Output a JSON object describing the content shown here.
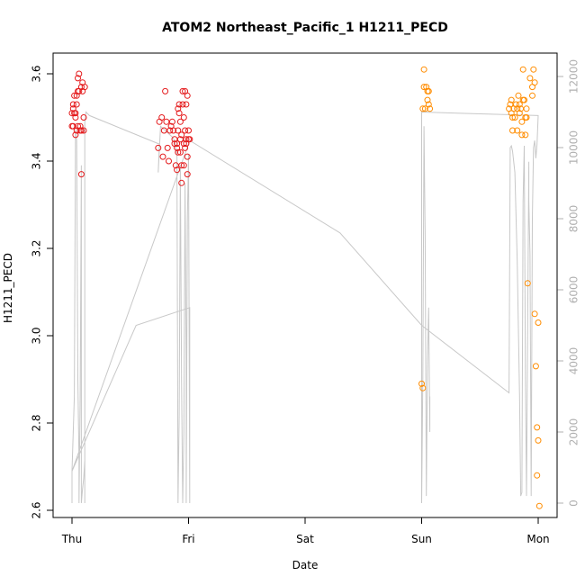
{
  "chart_data": {
    "type": "scatter",
    "title": "ATOM2 Northeast_Pacific_1 H1211_PECD",
    "xlabel": "Date",
    "ylabel": "H1211_PECD",
    "x_ticks": [
      "Thu",
      "Fri",
      "Sat",
      "Sun",
      "Mon"
    ],
    "xlim": [
      -0.02,
      4.2
    ],
    "ylim": [
      2.6,
      3.6
    ],
    "y_ticks": [
      2.6,
      2.8,
      3.0,
      3.2,
      3.4,
      3.6
    ],
    "y2_ticks": [
      0,
      2000,
      4000,
      6000,
      8000,
      10000,
      12000
    ],
    "y2lim": [
      0,
      12000
    ],
    "grid": false,
    "series": [
      {
        "color": "#e41a1c",
        "points": [
          [
            0.0,
            3.51
          ],
          [
            0.0,
            3.48
          ],
          [
            0.01,
            3.53
          ],
          [
            0.01,
            3.48
          ],
          [
            0.01,
            3.52
          ],
          [
            0.02,
            3.51
          ],
          [
            0.02,
            3.55
          ],
          [
            0.03,
            3.46
          ],
          [
            0.03,
            3.51
          ],
          [
            0.03,
            3.5
          ],
          [
            0.04,
            3.55
          ],
          [
            0.04,
            3.53
          ],
          [
            0.04,
            3.47
          ],
          [
            0.05,
            3.48
          ],
          [
            0.05,
            3.56
          ],
          [
            0.05,
            3.59
          ],
          [
            0.06,
            3.6
          ],
          [
            0.06,
            3.56
          ],
          [
            0.07,
            3.48
          ],
          [
            0.07,
            3.47
          ],
          [
            0.08,
            3.57
          ],
          [
            0.08,
            3.37
          ],
          [
            0.08,
            3.47
          ],
          [
            0.09,
            3.58
          ],
          [
            0.09,
            3.56
          ],
          [
            0.1,
            3.5
          ],
          [
            0.1,
            3.47
          ],
          [
            0.11,
            3.57
          ],
          [
            0.74,
            3.43
          ],
          [
            0.75,
            3.49
          ],
          [
            0.77,
            3.5
          ],
          [
            0.78,
            3.41
          ],
          [
            0.79,
            3.47
          ],
          [
            0.8,
            3.56
          ],
          [
            0.81,
            3.49
          ],
          [
            0.82,
            3.43
          ],
          [
            0.83,
            3.4
          ],
          [
            0.84,
            3.47
          ],
          [
            0.85,
            3.48
          ],
          [
            0.86,
            3.49
          ],
          [
            0.87,
            3.47
          ],
          [
            0.88,
            3.45
          ],
          [
            0.88,
            3.44
          ],
          [
            0.89,
            3.39
          ],
          [
            0.9,
            3.43
          ],
          [
            0.9,
            3.44
          ],
          [
            0.9,
            3.38
          ],
          [
            0.91,
            3.47
          ],
          [
            0.91,
            3.52
          ],
          [
            0.91,
            3.42
          ],
          [
            0.92,
            3.53
          ],
          [
            0.92,
            3.51
          ],
          [
            0.93,
            3.49
          ],
          [
            0.93,
            3.45
          ],
          [
            0.93,
            3.42
          ],
          [
            0.94,
            3.39
          ],
          [
            0.94,
            3.35
          ],
          [
            0.94,
            3.46
          ],
          [
            0.95,
            3.56
          ],
          [
            0.95,
            3.53
          ],
          [
            0.96,
            3.5
          ],
          [
            0.96,
            3.44
          ],
          [
            0.96,
            3.39
          ],
          [
            0.97,
            3.43
          ],
          [
            0.97,
            3.47
          ],
          [
            0.97,
            3.56
          ],
          [
            0.98,
            3.53
          ],
          [
            0.98,
            3.44
          ],
          [
            0.98,
            3.45
          ],
          [
            0.99,
            3.55
          ],
          [
            0.99,
            3.41
          ],
          [
            0.99,
            3.37
          ],
          [
            1.0,
            3.45
          ],
          [
            1.0,
            3.47
          ],
          [
            1.01,
            3.45
          ]
        ]
      },
      {
        "color": "#ff8c00",
        "points": [
          [
            3.0,
            2.89
          ],
          [
            3.01,
            2.88
          ],
          [
            3.01,
            3.52
          ],
          [
            3.02,
            3.61
          ],
          [
            3.02,
            3.57
          ],
          [
            3.03,
            3.52
          ],
          [
            3.04,
            3.57
          ],
          [
            3.05,
            3.56
          ],
          [
            3.05,
            3.54
          ],
          [
            3.06,
            3.56
          ],
          [
            3.06,
            3.53
          ],
          [
            3.07,
            3.52
          ],
          [
            3.75,
            3.52
          ],
          [
            3.76,
            3.53
          ],
          [
            3.77,
            3.51
          ],
          [
            3.77,
            3.54
          ],
          [
            3.78,
            3.5
          ],
          [
            3.78,
            3.47
          ],
          [
            3.79,
            3.52
          ],
          [
            3.8,
            3.5
          ],
          [
            3.81,
            3.53
          ],
          [
            3.82,
            3.52
          ],
          [
            3.82,
            3.47
          ],
          [
            3.83,
            3.55
          ],
          [
            3.84,
            3.51
          ],
          [
            3.84,
            3.53
          ],
          [
            3.85,
            3.52
          ],
          [
            3.86,
            3.46
          ],
          [
            3.86,
            3.49
          ],
          [
            3.87,
            3.54
          ],
          [
            3.87,
            3.61
          ],
          [
            3.88,
            3.54
          ],
          [
            3.89,
            3.5
          ],
          [
            3.89,
            3.46
          ],
          [
            3.9,
            3.52
          ],
          [
            3.9,
            3.5
          ],
          [
            3.91,
            3.12
          ],
          [
            3.93,
            3.59
          ],
          [
            3.95,
            3.57
          ],
          [
            3.95,
            3.55
          ],
          [
            3.96,
            3.61
          ],
          [
            3.97,
            3.58
          ],
          [
            3.97,
            3.05
          ],
          [
            3.98,
            2.93
          ],
          [
            3.99,
            2.79
          ],
          [
            3.99,
            2.68
          ],
          [
            4.0,
            3.03
          ],
          [
            4.0,
            2.76
          ],
          [
            4.01,
            2.61
          ]
        ]
      }
    ],
    "altitude_line": {
      "color": "#c8c8c8",
      "axis": "right",
      "points": [
        [
          0.0,
          0
        ],
        [
          0.0,
          900
        ],
        [
          0.02,
          3000
        ],
        [
          0.03,
          10500
        ],
        [
          0.04,
          10200
        ],
        [
          0.05,
          3500
        ],
        [
          0.06,
          1200
        ],
        [
          0.06,
          0
        ],
        [
          0.07,
          3000
        ],
        [
          0.08,
          9500
        ],
        [
          0.08,
          8500
        ],
        [
          0.08,
          0
        ],
        [
          0.09,
          400
        ],
        [
          0.1,
          700
        ],
        [
          0.11,
          1200
        ],
        [
          0.11,
          0
        ],
        [
          0.11,
          10700
        ],
        [
          0.12,
          11000
        ],
        [
          0.15,
          10900
        ],
        [
          0.75,
          10100
        ],
        [
          0.74,
          9300
        ],
        [
          0.76,
          10600
        ],
        [
          0.86,
          10300
        ],
        [
          0.88,
          10200
        ],
        [
          0.9,
          9800
        ],
        [
          0.91,
          0
        ],
        [
          0.92,
          2500
        ],
        [
          0.93,
          9500
        ],
        [
          0.94,
          3500
        ],
        [
          0.95,
          0
        ],
        [
          0.96,
          2000
        ],
        [
          0.97,
          9000
        ],
        [
          0.98,
          4000
        ],
        [
          0.98,
          0
        ],
        [
          0.99,
          8000
        ],
        [
          1.0,
          9800
        ],
        [
          1.01,
          0
        ],
        [
          1.01,
          5500
        ],
        [
          0.55,
          5000
        ],
        [
          0.0,
          900
        ],
        [
          0.0,
          900
        ],
        [
          1.01,
          10200
        ],
        [
          2.3,
          7600
        ],
        [
          3.0,
          5000
        ],
        [
          3.75,
          3100
        ],
        [
          3.76,
          10000
        ],
        [
          3.77,
          10050
        ],
        [
          3.78,
          9900
        ],
        [
          3.8,
          9300
        ],
        [
          3.82,
          6800
        ],
        [
          3.84,
          3000
        ],
        [
          3.85,
          200
        ],
        [
          3.86,
          300
        ],
        [
          3.87,
          8500
        ],
        [
          3.88,
          10050
        ],
        [
          3.89,
          3500
        ],
        [
          3.9,
          200
        ],
        [
          3.91,
          5000
        ],
        [
          3.92,
          9600
        ],
        [
          3.92,
          8500
        ],
        [
          3.93,
          7000
        ],
        [
          3.94,
          200
        ],
        [
          3.95,
          8000
        ],
        [
          3.96,
          10000
        ],
        [
          3.97,
          10200
        ],
        [
          3.98,
          9700
        ],
        [
          3.99,
          10100
        ],
        [
          4.0,
          10900
        ],
        [
          3.0,
          11000
        ],
        [
          3.0,
          0
        ],
        [
          3.01,
          3500
        ],
        [
          3.02,
          10600
        ],
        [
          3.03,
          7500
        ],
        [
          3.04,
          200
        ],
        [
          3.05,
          4000
        ],
        [
          3.06,
          5500
        ],
        [
          3.07,
          2000
        ],
        [
          3.07,
          3000
        ]
      ]
    }
  }
}
